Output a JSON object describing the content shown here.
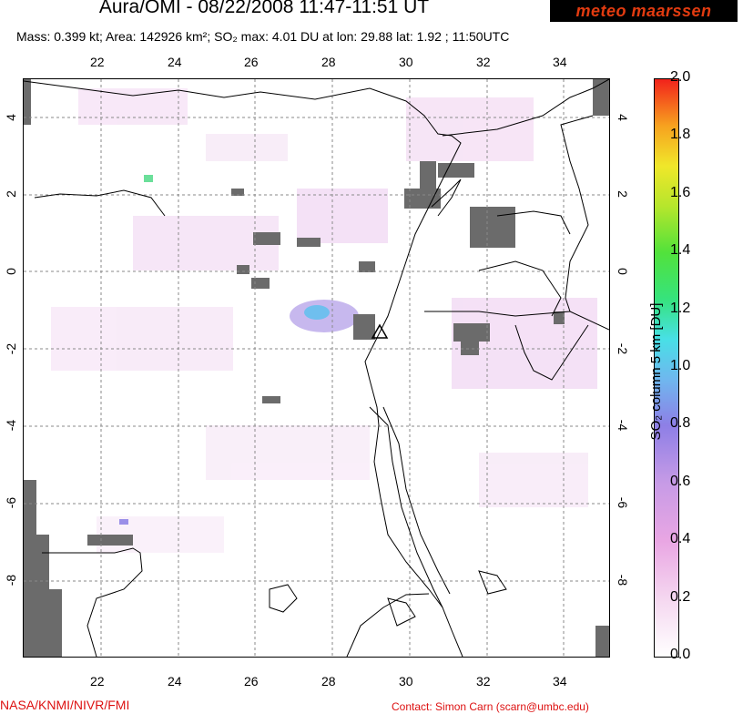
{
  "title": "Aura/OMI - 08/22/2008 11:47-11:51 UT",
  "subtitle": "Mass: 0.399 kt; Area: 142926 km²; SO₂ max: 4.01 DU at lon: 29.88 lat: 1.92 ; 11:50UTC",
  "logo_text": "meteo maarssen",
  "x_ticks": [
    "22",
    "24",
    "26",
    "28",
    "30",
    "32",
    "34"
  ],
  "y_ticks": [
    "4",
    "2",
    "0",
    "-2",
    "-4",
    "-6",
    "-8"
  ],
  "colorbar": {
    "ticks": [
      "2.0",
      "1.8",
      "1.6",
      "1.4",
      "1.2",
      "1.0",
      "0.8",
      "0.6",
      "0.4",
      "0.2",
      "0.0"
    ],
    "label": "SO₂ column 5 km [DU]",
    "min": 0.0,
    "max": 2.0
  },
  "footer_left": "NASA/KNMI/NIVR/FMI",
  "footer_right": "Contact: Simon Carn (scarn@umbc.edu)",
  "colors": {
    "missing": "#6b6b6b",
    "grid": "#8a8a8a",
    "credit": "#d11111"
  }
}
